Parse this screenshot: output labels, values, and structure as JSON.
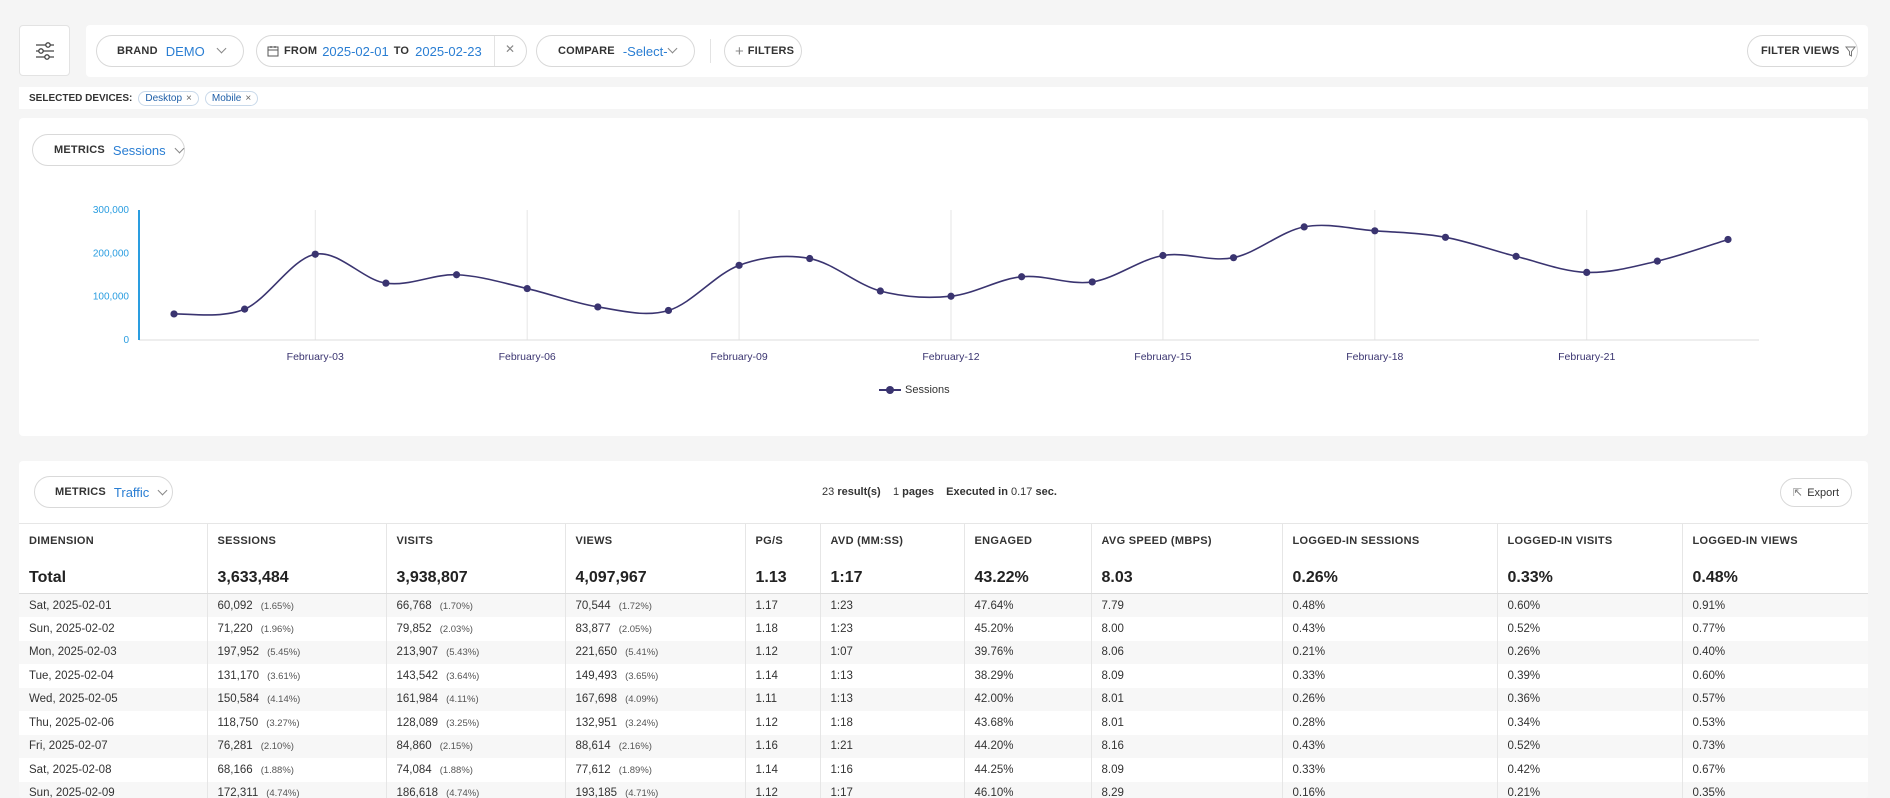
{
  "filters": {
    "brand_label": "BRAND",
    "brand_value": "DEMO",
    "from_label": "FROM",
    "from_value": "2025-02-01",
    "to_label": "TO",
    "to_value": "2025-02-23",
    "clear_glyph": "✕",
    "compare_label": "COMPARE",
    "compare_value": "-Select-",
    "filters_label": "FILTERS",
    "filter_views_label": "FILTER VIEWS"
  },
  "devices": {
    "label": "SELECTED DEVICES:",
    "items": [
      {
        "label": "Desktop",
        "remove": "×"
      },
      {
        "label": "Mobile",
        "remove": "×"
      }
    ]
  },
  "chart_metrics": {
    "label": "METRICS",
    "value": "Sessions"
  },
  "chart_data": {
    "type": "line",
    "x": [
      "2025-02-01",
      "2025-02-02",
      "2025-02-03",
      "2025-02-04",
      "2025-02-05",
      "2025-02-06",
      "2025-02-07",
      "2025-02-08",
      "2025-02-09",
      "2025-02-10",
      "2025-02-11",
      "2025-02-12",
      "2025-02-13",
      "2025-02-14",
      "2025-02-15",
      "2025-02-16",
      "2025-02-17",
      "2025-02-18",
      "2025-02-19",
      "2025-02-20",
      "2025-02-21",
      "2025-02-22",
      "2025-02-23"
    ],
    "series": [
      {
        "name": "Sessions",
        "values": [
          60092,
          71220,
          197952,
          131170,
          150584,
          118750,
          76281,
          68166,
          172311,
          188000,
          113000,
          101000,
          146000,
          134000,
          195000,
          190000,
          261000,
          252000,
          237000,
          193000,
          156000,
          182000,
          232000
        ]
      }
    ],
    "x_tick_labels": [
      "February-03",
      "February-06",
      "February-09",
      "February-12",
      "February-15",
      "February-18",
      "February-21"
    ],
    "x_tick_indices": [
      2,
      5,
      8,
      11,
      14,
      17,
      20
    ],
    "y_ticks": [
      0,
      100000,
      200000,
      300000
    ],
    "y_tick_labels": [
      "0",
      "100,000",
      "200,000",
      "300,000"
    ],
    "ylim": [
      0,
      300000
    ],
    "legend": "bottom-center",
    "color": "#3a3470",
    "axis_color": "#2a9de0"
  },
  "table_metrics": {
    "label": "METRICS",
    "value": "Traffic"
  },
  "summary": {
    "results": "23",
    "results_label": "result(s)",
    "pages": "1",
    "pages_label": "pages",
    "executed_label": "Executed in",
    "time": "0.17",
    "time_unit": "sec."
  },
  "export_label": "Export",
  "table": {
    "headers": [
      "DIMENSION",
      "SESSIONS",
      "VISITS",
      "VIEWS",
      "PG/S",
      "AVD (MM:SS)",
      "ENGAGED",
      "AVG SPEED (MBPS)",
      "LOGGED-IN SESSIONS",
      "LOGGED-IN VISITS",
      "LOGGED-IN VIEWS"
    ],
    "total": [
      "Total",
      "3,633,484",
      "3,938,807",
      "4,097,967",
      "1.13",
      "1:17",
      "43.22%",
      "8.03",
      "0.26%",
      "0.33%",
      "0.48%"
    ],
    "rows": [
      {
        "dim": "Sat, 2025-02-01",
        "sessions": "60,092",
        "sessions_pct": "(1.65%)",
        "visits": "66,768",
        "visits_pct": "(1.70%)",
        "views": "70,544",
        "views_pct": "(1.72%)",
        "pgs": "1.17",
        "avd": "1:23",
        "engaged": "47.64%",
        "speed": "7.79",
        "li_sessions": "0.48%",
        "li_visits": "0.60%",
        "li_views": "0.91%"
      },
      {
        "dim": "Sun, 2025-02-02",
        "sessions": "71,220",
        "sessions_pct": "(1.96%)",
        "visits": "79,852",
        "visits_pct": "(2.03%)",
        "views": "83,877",
        "views_pct": "(2.05%)",
        "pgs": "1.18",
        "avd": "1:23",
        "engaged": "45.20%",
        "speed": "8.00",
        "li_sessions": "0.43%",
        "li_visits": "0.52%",
        "li_views": "0.77%"
      },
      {
        "dim": "Mon, 2025-02-03",
        "sessions": "197,952",
        "sessions_pct": "(5.45%)",
        "visits": "213,907",
        "visits_pct": "(5.43%)",
        "views": "221,650",
        "views_pct": "(5.41%)",
        "pgs": "1.12",
        "avd": "1:07",
        "engaged": "39.76%",
        "speed": "8.06",
        "li_sessions": "0.21%",
        "li_visits": "0.26%",
        "li_views": "0.40%"
      },
      {
        "dim": "Tue, 2025-02-04",
        "sessions": "131,170",
        "sessions_pct": "(3.61%)",
        "visits": "143,542",
        "visits_pct": "(3.64%)",
        "views": "149,493",
        "views_pct": "(3.65%)",
        "pgs": "1.14",
        "avd": "1:13",
        "engaged": "38.29%",
        "speed": "8.09",
        "li_sessions": "0.33%",
        "li_visits": "0.39%",
        "li_views": "0.60%"
      },
      {
        "dim": "Wed, 2025-02-05",
        "sessions": "150,584",
        "sessions_pct": "(4.14%)",
        "visits": "161,984",
        "visits_pct": "(4.11%)",
        "views": "167,698",
        "views_pct": "(4.09%)",
        "pgs": "1.11",
        "avd": "1:13",
        "engaged": "42.00%",
        "speed": "8.01",
        "li_sessions": "0.26%",
        "li_visits": "0.36%",
        "li_views": "0.57%"
      },
      {
        "dim": "Thu, 2025-02-06",
        "sessions": "118,750",
        "sessions_pct": "(3.27%)",
        "visits": "128,089",
        "visits_pct": "(3.25%)",
        "views": "132,951",
        "views_pct": "(3.24%)",
        "pgs": "1.12",
        "avd": "1:18",
        "engaged": "43.68%",
        "speed": "8.01",
        "li_sessions": "0.28%",
        "li_visits": "0.34%",
        "li_views": "0.53%"
      },
      {
        "dim": "Fri, 2025-02-07",
        "sessions": "76,281",
        "sessions_pct": "(2.10%)",
        "visits": "84,860",
        "visits_pct": "(2.15%)",
        "views": "88,614",
        "views_pct": "(2.16%)",
        "pgs": "1.16",
        "avd": "1:21",
        "engaged": "44.20%",
        "speed": "8.16",
        "li_sessions": "0.43%",
        "li_visits": "0.52%",
        "li_views": "0.73%"
      },
      {
        "dim": "Sat, 2025-02-08",
        "sessions": "68,166",
        "sessions_pct": "(1.88%)",
        "visits": "74,084",
        "visits_pct": "(1.88%)",
        "views": "77,612",
        "views_pct": "(1.89%)",
        "pgs": "1.14",
        "avd": "1:16",
        "engaged": "44.25%",
        "speed": "8.09",
        "li_sessions": "0.33%",
        "li_visits": "0.42%",
        "li_views": "0.67%"
      },
      {
        "dim": "Sun, 2025-02-09",
        "sessions": "172,311",
        "sessions_pct": "(4.74%)",
        "visits": "186,618",
        "visits_pct": "(4.74%)",
        "views": "193,185",
        "views_pct": "(4.71%)",
        "pgs": "1.12",
        "avd": "1:17",
        "engaged": "46.10%",
        "speed": "8.29",
        "li_sessions": "0.16%",
        "li_visits": "0.21%",
        "li_views": "0.35%"
      }
    ]
  }
}
